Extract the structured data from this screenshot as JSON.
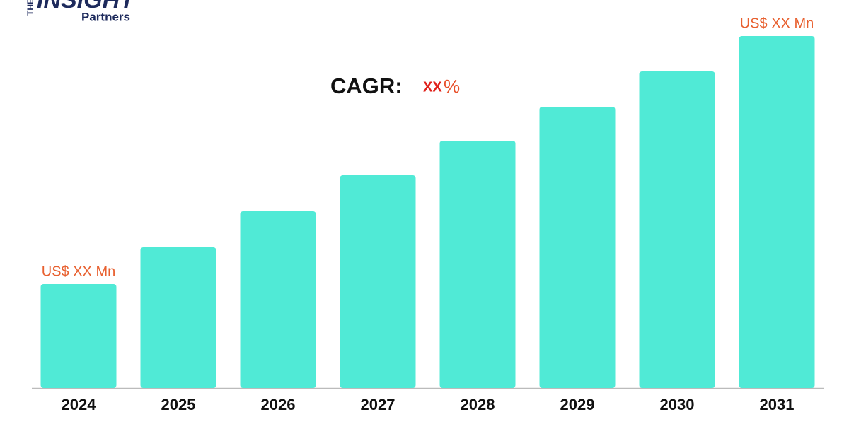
{
  "logo": {
    "small": "THE",
    "main": "INSIGHT",
    "sub": "Partners"
  },
  "chart_data": {
    "type": "bar",
    "title": "CAGR:",
    "cagr_value": "XX",
    "cagr_unit": "%",
    "categories": [
      "2024",
      "2025",
      "2026",
      "2027",
      "2028",
      "2029",
      "2030",
      "2031"
    ],
    "values": [
      147,
      199,
      250,
      301,
      350,
      398,
      448,
      498
    ],
    "color": "#50ead6",
    "annotations": [
      "US$ XX Mn",
      "US$ XX Mn"
    ]
  }
}
